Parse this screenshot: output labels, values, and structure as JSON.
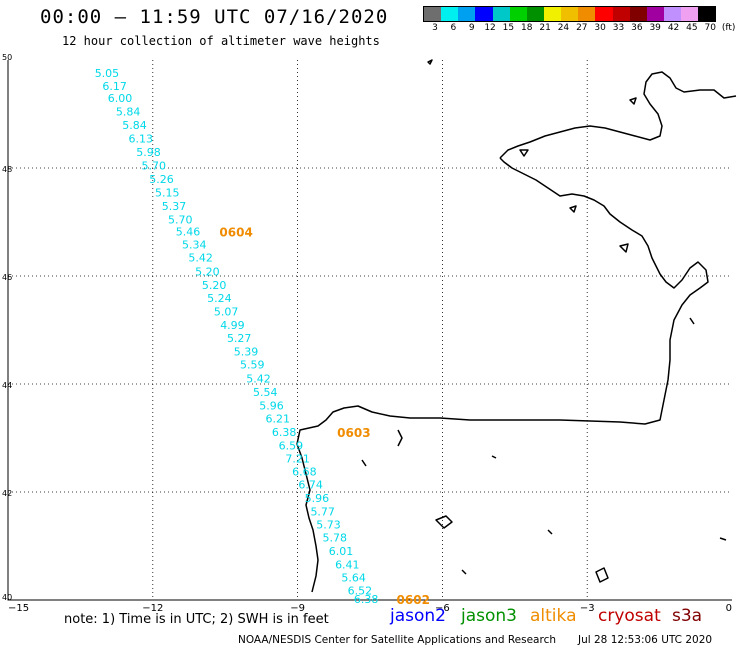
{
  "title": "00:00 – 11:59 UTC 07/16/2020",
  "subtitle": "12 hour collection of altimeter wave heights",
  "color_scale": {
    "colors": [
      "#6e6e6e",
      "#00f0f0",
      "#00a0f0",
      "#0000ff",
      "#00c8c8",
      "#00d000",
      "#009000",
      "#f0f000",
      "#f0c000",
      "#f08c00",
      "#ff0000",
      "#c00000",
      "#800000",
      "#a000a0",
      "#c090ff",
      "#f0a0f0",
      "#000000"
    ],
    "labels": [
      "3",
      "6",
      "9",
      "12",
      "15",
      "18",
      "21",
      "24",
      "27",
      "30",
      "33",
      "36",
      "39",
      "42",
      "45",
      "70",
      "(ft)"
    ]
  },
  "map_axes": {
    "lon_labels": [
      "−15",
      "−12",
      "−9",
      "−6",
      "−3",
      "0"
    ],
    "lat_labels": [
      "50",
      "48",
      "46",
      "44",
      "42",
      "40"
    ]
  },
  "track": {
    "color": "#00d8e8",
    "points": [
      {
        "lon": -12.95,
        "lat": 49.76,
        "swh": "5.05"
      },
      {
        "lon": -12.79,
        "lat": 49.52,
        "swh": "6.17"
      },
      {
        "lon": -12.68,
        "lat": 49.3,
        "swh": "6.00"
      },
      {
        "lon": -12.51,
        "lat": 49.05,
        "swh": "5.84"
      },
      {
        "lon": -12.38,
        "lat": 48.8,
        "swh": "5.84"
      },
      {
        "lon": -12.25,
        "lat": 48.55,
        "swh": "6.13"
      },
      {
        "lon": -12.09,
        "lat": 48.3,
        "swh": "5.98"
      },
      {
        "lon": -11.98,
        "lat": 48.05,
        "swh": "5.70"
      },
      {
        "lon": -11.82,
        "lat": 47.8,
        "swh": "5.26"
      },
      {
        "lon": -11.7,
        "lat": 47.55,
        "swh": "5.15"
      },
      {
        "lon": -11.56,
        "lat": 47.3,
        "swh": "5.37"
      },
      {
        "lon": -11.43,
        "lat": 47.05,
        "swh": "5.70"
      },
      {
        "lon": -11.27,
        "lat": 46.82,
        "swh": "5.46"
      },
      {
        "lon": -11.14,
        "lat": 46.58,
        "swh": "5.34"
      },
      {
        "lon": -11.01,
        "lat": 46.34,
        "swh": "5.42"
      },
      {
        "lon": -10.87,
        "lat": 46.08,
        "swh": "5.20"
      },
      {
        "lon": -10.73,
        "lat": 45.83,
        "swh": "5.20"
      },
      {
        "lon": -10.62,
        "lat": 45.59,
        "swh": "5.24"
      },
      {
        "lon": -10.48,
        "lat": 45.34,
        "swh": "5.07"
      },
      {
        "lon": -10.35,
        "lat": 45.09,
        "swh": "4.99"
      },
      {
        "lon": -10.21,
        "lat": 44.85,
        "swh": "5.27"
      },
      {
        "lon": -10.07,
        "lat": 44.6,
        "swh": "5.39"
      },
      {
        "lon": -9.94,
        "lat": 44.36,
        "swh": "5.59"
      },
      {
        "lon": -9.81,
        "lat": 44.1,
        "swh": "5.42"
      },
      {
        "lon": -9.67,
        "lat": 43.85,
        "swh": "5.54"
      },
      {
        "lon": -9.54,
        "lat": 43.6,
        "swh": "5.96"
      },
      {
        "lon": -9.41,
        "lat": 43.36,
        "swh": "6.21"
      },
      {
        "lon": -9.28,
        "lat": 43.11,
        "swh": "6.38"
      },
      {
        "lon": -9.14,
        "lat": 42.86,
        "swh": "6.59"
      },
      {
        "lon": -9.0,
        "lat": 42.62,
        "swh": "7.21"
      },
      {
        "lon": -8.86,
        "lat": 42.38,
        "swh": "6.68"
      },
      {
        "lon": -8.73,
        "lat": 42.14,
        "swh": "6.74"
      },
      {
        "lon": -8.6,
        "lat": 41.89,
        "swh": "5.96"
      },
      {
        "lon": -8.48,
        "lat": 41.64,
        "swh": "5.77"
      },
      {
        "lon": -8.36,
        "lat": 41.4,
        "swh": "5.73"
      },
      {
        "lon": -8.23,
        "lat": 41.16,
        "swh": "5.78"
      },
      {
        "lon": -8.1,
        "lat": 40.91,
        "swh": "6.01"
      },
      {
        "lon": -7.97,
        "lat": 40.66,
        "swh": "6.41"
      },
      {
        "lon": -7.84,
        "lat": 40.42,
        "swh": "5.64"
      },
      {
        "lon": -7.71,
        "lat": 40.18,
        "swh": "6.52"
      },
      {
        "lon": -7.58,
        "lat": 40.02,
        "swh": "6.38"
      }
    ],
    "time_labels": [
      {
        "text": "0604",
        "lon": -10.62,
        "lat": 46.82
      },
      {
        "text": "0603",
        "lon": -8.18,
        "lat": 43.11
      },
      {
        "text": "0602",
        "lon": -6.95,
        "lat": 40.02
      }
    ],
    "time_label_color": "#f08c00"
  },
  "note": "note:  1) Time is in UTC;  2) SWH is in feet",
  "satellites": [
    {
      "name": "jason2",
      "color": "#0000ff"
    },
    {
      "name": "jason3",
      "color": "#009000"
    },
    {
      "name": "altika",
      "color": "#f08c00"
    },
    {
      "name": "cryosat",
      "color": "#c00000"
    },
    {
      "name": "s3a",
      "color": "#800000"
    }
  ],
  "credit": "NOAA/NESDIS Center for Satellite Applications and Research",
  "credit_date": "Jul 28 12:53:06 UTC 2020"
}
